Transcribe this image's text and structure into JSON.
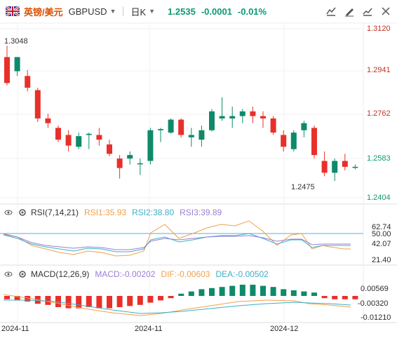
{
  "header": {
    "symbol_cn": "英镑/美元",
    "symbol": "GBPUSD",
    "timeframe": "日K",
    "price": "1.2535",
    "change": "-0.0001",
    "change_pct": "-0.01%"
  },
  "main_chart": {
    "y_ticks": [
      "1.3120",
      "1.2941",
      "1.2762",
      "1.2583",
      "1.2404"
    ],
    "high_label": "1.3048",
    "low_label": "1.2475",
    "current_price": "1.2535"
  },
  "rsi": {
    "title": "RSI(7,14,21)",
    "rsi1": "RSI1:35.93",
    "rsi2": "RSI2:38.80",
    "rsi3": "RSI3:39.89",
    "ticks": [
      "62.74",
      "50.00",
      "42.07",
      "21.40"
    ]
  },
  "macd": {
    "title": "MACD(12,26,9)",
    "macd": "MACD:-0.00202",
    "dif": "DIF:-0.00603",
    "dea": "DEA:-0.00502",
    "ticks": [
      "0.00569",
      "-0.00320",
      "-0.01210"
    ]
  },
  "x_axis": [
    "2024-11",
    "2024-11",
    "2024-12"
  ],
  "colors": {
    "up": "#e8302a",
    "down": "#0d8a6a"
  },
  "candles": [
    {
      "o": 1.3,
      "h": 1.3048,
      "l": 1.288,
      "c": 1.289
    },
    {
      "o": 1.294,
      "h": 1.3,
      "l": 1.292,
      "c": 1.3
    },
    {
      "o": 1.292,
      "h": 1.2945,
      "l": 1.2855,
      "c": 1.287
    },
    {
      "o": 1.286,
      "h": 1.287,
      "l": 1.2725,
      "c": 1.274
    },
    {
      "o": 1.274,
      "h": 1.276,
      "l": 1.27,
      "c": 1.272
    },
    {
      "o": 1.27,
      "h": 1.271,
      "l": 1.264,
      "c": 1.265
    },
    {
      "o": 1.267,
      "h": 1.269,
      "l": 1.26,
      "c": 1.2625
    },
    {
      "o": 1.262,
      "h": 1.268,
      "l": 1.261,
      "c": 1.2665
    },
    {
      "o": 1.267,
      "h": 1.268,
      "l": 1.261,
      "c": 1.2675
    },
    {
      "o": 1.267,
      "h": 1.27,
      "l": 1.2625,
      "c": 1.265
    },
    {
      "o": 1.263,
      "h": 1.265,
      "l": 1.258,
      "c": 1.259
    },
    {
      "o": 1.257,
      "h": 1.2585,
      "l": 1.2485,
      "c": 1.253
    },
    {
      "o": 1.257,
      "h": 1.26,
      "l": 1.2545,
      "c": 1.2585
    },
    {
      "o": 1.255,
      "h": 1.257,
      "l": 1.25,
      "c": 1.255
    },
    {
      "o": 1.256,
      "h": 1.27,
      "l": 1.2545,
      "c": 1.269
    },
    {
      "o": 1.269,
      "h": 1.27,
      "l": 1.264,
      "c": 1.2695
    },
    {
      "o": 1.268,
      "h": 1.274,
      "l": 1.2675,
      "c": 1.2735
    },
    {
      "o": 1.2735,
      "h": 1.274,
      "l": 1.266,
      "c": 1.267
    },
    {
      "o": 1.266,
      "h": 1.27,
      "l": 1.262,
      "c": 1.267
    },
    {
      "o": 1.265,
      "h": 1.271,
      "l": 1.262,
      "c": 1.269
    },
    {
      "o": 1.269,
      "h": 1.278,
      "l": 1.2685,
      "c": 1.277
    },
    {
      "o": 1.274,
      "h": 1.283,
      "l": 1.273,
      "c": 1.275
    },
    {
      "o": 1.274,
      "h": 1.279,
      "l": 1.27,
      "c": 1.275
    },
    {
      "o": 1.275,
      "h": 1.278,
      "l": 1.272,
      "c": 1.277
    },
    {
      "o": 1.277,
      "h": 1.279,
      "l": 1.272,
      "c": 1.275
    },
    {
      "o": 1.275,
      "h": 1.277,
      "l": 1.27,
      "c": 1.274
    },
    {
      "o": 1.274,
      "h": 1.275,
      "l": 1.267,
      "c": 1.268
    },
    {
      "o": 1.267,
      "h": 1.269,
      "l": 1.26,
      "c": 1.262
    },
    {
      "o": 1.261,
      "h": 1.269,
      "l": 1.26,
      "c": 1.268
    },
    {
      "o": 1.269,
      "h": 1.273,
      "l": 1.266,
      "c": 1.272
    },
    {
      "o": 1.27,
      "h": 1.271,
      "l": 1.257,
      "c": 1.2585
    },
    {
      "o": 1.256,
      "h": 1.26,
      "l": 1.2495,
      "c": 1.251
    },
    {
      "o": 1.251,
      "h": 1.257,
      "l": 1.2475,
      "c": 1.256
    },
    {
      "o": 1.256,
      "h": 1.259,
      "l": 1.252,
      "c": 1.2535
    },
    {
      "o": 1.2535,
      "h": 1.2545,
      "l": 1.2525,
      "c": 1.2535
    }
  ]
}
